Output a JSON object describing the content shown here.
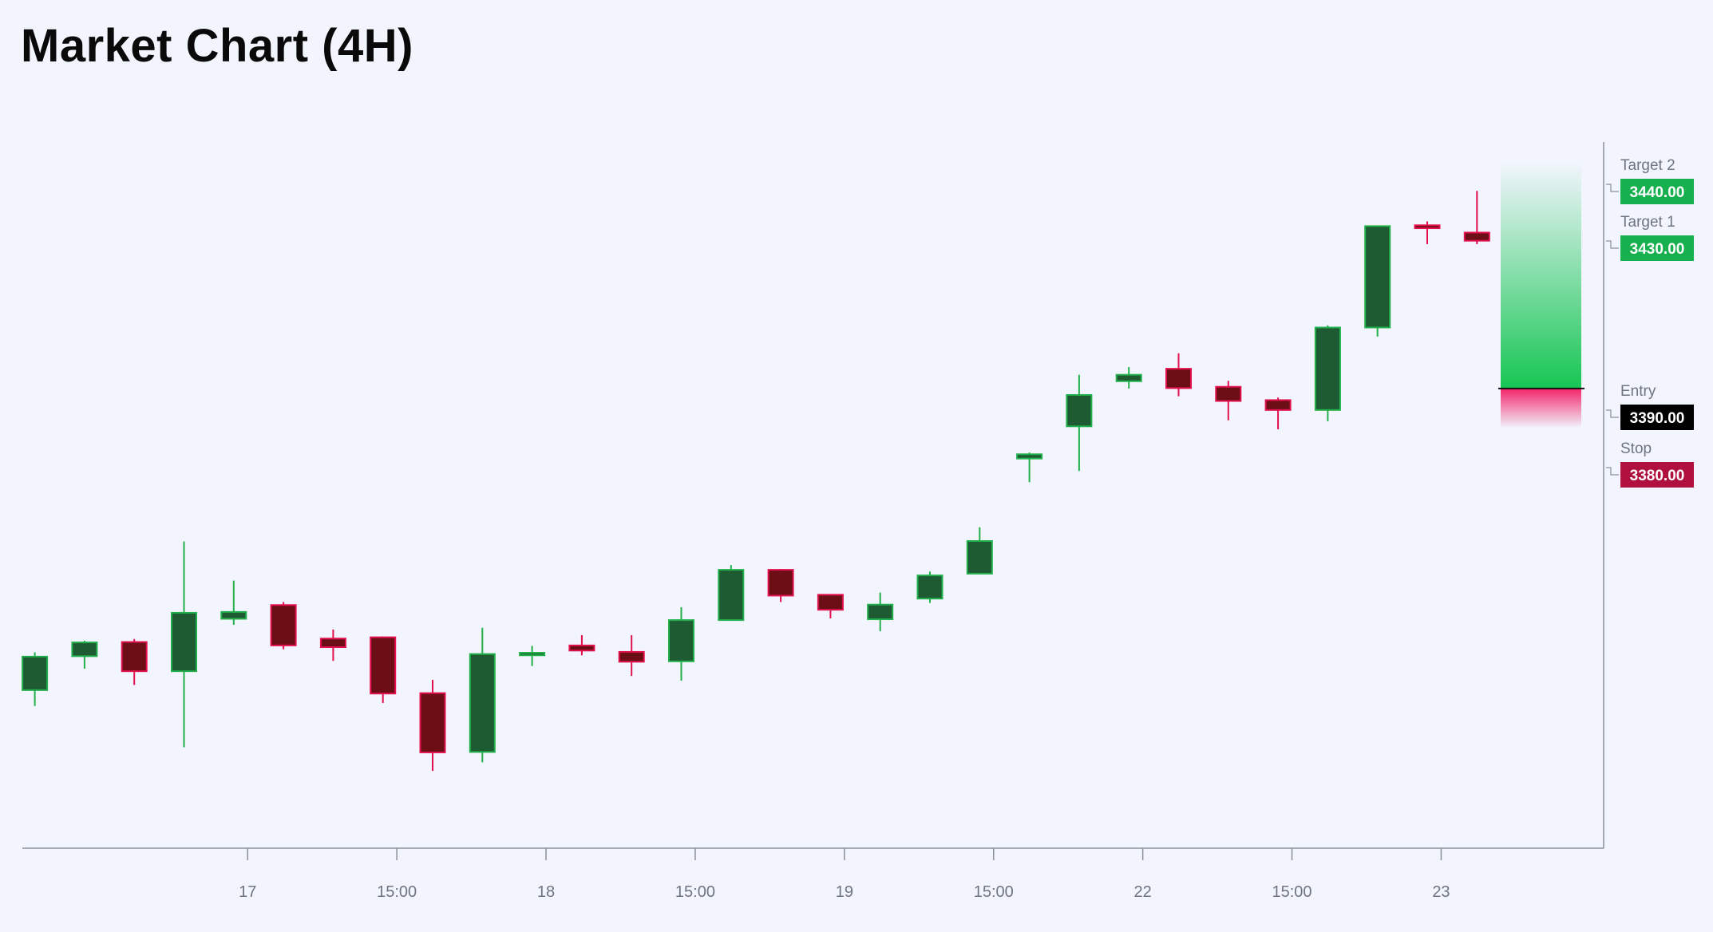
{
  "chart_data": {
    "type": "candlestick",
    "title": "Market Chart (4H)",
    "x_tick_labels": [
      "17",
      "15:00",
      "18",
      "15:00",
      "19",
      "15:00",
      "22",
      "15:00",
      "23"
    ],
    "x_tick_candle_index": [
      4.28,
      7.28,
      10.28,
      13.28,
      16.28,
      19.28,
      22.28,
      25.28,
      28.28
    ],
    "ylim": [
      3283,
      3447
    ],
    "grid": false,
    "colors": {
      "up_body": "#1e5b33",
      "up_border": "#22b04b",
      "down_body": "#6b0e16",
      "down_border": "#e3104e"
    },
    "candles": [
      {
        "o": 3319.8,
        "h": 3328.6,
        "l": 3316.1,
        "c": 3327.6
      },
      {
        "o": 3327.7,
        "h": 3331.3,
        "l": 3324.8,
        "c": 3330.9
      },
      {
        "o": 3331.0,
        "h": 3331.7,
        "l": 3321.0,
        "c": 3324.2
      },
      {
        "o": 3324.2,
        "h": 3354.4,
        "l": 3306.5,
        "c": 3337.8
      },
      {
        "o": 3336.4,
        "h": 3345.3,
        "l": 3335.0,
        "c": 3338.0
      },
      {
        "o": 3339.6,
        "h": 3340.3,
        "l": 3329.3,
        "c": 3330.2
      },
      {
        "o": 3331.8,
        "h": 3333.9,
        "l": 3326.6,
        "c": 3329.8
      },
      {
        "o": 3332.1,
        "h": 3332.3,
        "l": 3316.8,
        "c": 3319.0
      },
      {
        "o": 3319.1,
        "h": 3322.2,
        "l": 3301.0,
        "c": 3305.3
      },
      {
        "o": 3305.4,
        "h": 3334.3,
        "l": 3303.0,
        "c": 3328.2
      },
      {
        "o": 3327.9,
        "h": 3330.1,
        "l": 3325.4,
        "c": 3328.5
      },
      {
        "o": 3330.2,
        "h": 3332.6,
        "l": 3327.9,
        "c": 3329.0
      },
      {
        "o": 3328.7,
        "h": 3332.6,
        "l": 3323.1,
        "c": 3326.4
      },
      {
        "o": 3326.5,
        "h": 3339.1,
        "l": 3322.0,
        "c": 3336.1
      },
      {
        "o": 3336.1,
        "h": 3348.9,
        "l": 3336.0,
        "c": 3347.8
      },
      {
        "o": 3347.8,
        "h": 3348.0,
        "l": 3340.3,
        "c": 3341.8
      },
      {
        "o": 3342.0,
        "h": 3342.0,
        "l": 3336.5,
        "c": 3338.5
      },
      {
        "o": 3336.3,
        "h": 3342.5,
        "l": 3333.5,
        "c": 3339.7
      },
      {
        "o": 3341.1,
        "h": 3347.4,
        "l": 3340.1,
        "c": 3346.5
      },
      {
        "o": 3346.9,
        "h": 3357.7,
        "l": 3346.8,
        "c": 3354.5
      },
      {
        "o": 3373.7,
        "h": 3375.1,
        "l": 3368.2,
        "c": 3374.7
      },
      {
        "o": 3381.2,
        "h": 3393.2,
        "l": 3370.8,
        "c": 3388.5
      },
      {
        "o": 3391.7,
        "h": 3395.0,
        "l": 3390.0,
        "c": 3393.2
      },
      {
        "o": 3394.6,
        "h": 3398.2,
        "l": 3388.2,
        "c": 3390.1
      },
      {
        "o": 3390.4,
        "h": 3391.8,
        "l": 3382.6,
        "c": 3387.1
      },
      {
        "o": 3387.3,
        "h": 3387.9,
        "l": 3380.5,
        "c": 3385.0
      },
      {
        "o": 3385.0,
        "h": 3404.7,
        "l": 3382.4,
        "c": 3404.2
      },
      {
        "o": 3404.2,
        "h": 3427.8,
        "l": 3402.1,
        "c": 3427.8
      },
      {
        "o": 3428.0,
        "h": 3428.9,
        "l": 3423.6,
        "c": 3427.3
      },
      {
        "o": 3426.3,
        "h": 3436.0,
        "l": 3423.6,
        "c": 3424.4
      }
    ],
    "levels": [
      {
        "name": "Target 2",
        "price": 3440.0,
        "price_text": "3440.00",
        "color": "#17b04f"
      },
      {
        "name": "Target 1",
        "price": 3430.0,
        "price_text": "3430.00",
        "color": "#17b04f"
      },
      {
        "name": "Entry",
        "price": 3390.0,
        "price_text": "3390.00",
        "color": "#000000"
      },
      {
        "name": "Stop",
        "price": 3380.0,
        "price_text": "3380.00",
        "color": "#b0103e"
      }
    ],
    "position_zone": {
      "entry": 3390.0,
      "profit_top": 3430.0,
      "stop": 3380.0,
      "profit_color": "#16c653",
      "loss_color": "#f2256a"
    }
  }
}
